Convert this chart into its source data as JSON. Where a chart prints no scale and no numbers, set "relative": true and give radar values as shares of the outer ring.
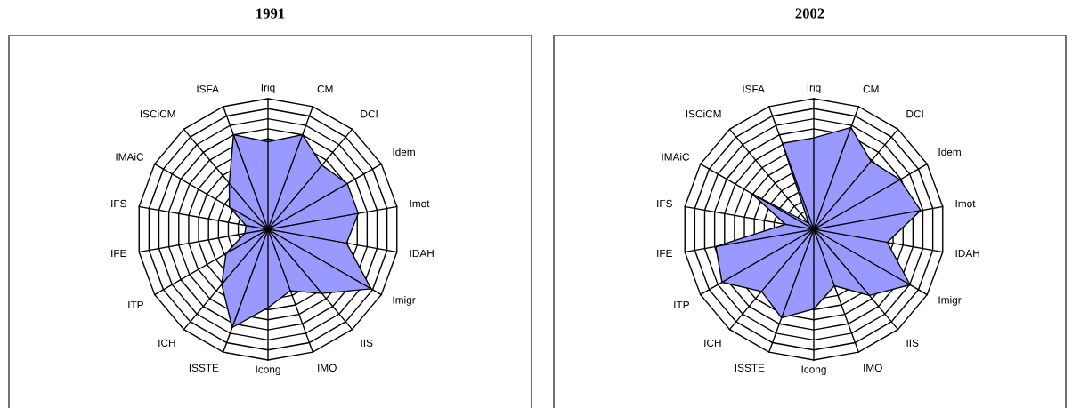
{
  "chart_data": [
    {
      "type": "radar",
      "title": "1991",
      "relative": true,
      "grid": true,
      "categories": [
        "Iriq",
        "CM",
        "DCI",
        "Idem",
        "Imot",
        "IDAH",
        "Imigr",
        "IIS",
        "IMO",
        "Icong",
        "ISSTE",
        "ICH",
        "ITP",
        "IFE",
        "IFS",
        "IMAiC",
        "ISCiCM",
        "ISFA"
      ],
      "series": [
        {
          "color": "#9999ff",
          "values": [
            0.67,
            0.77,
            0.64,
            0.7,
            0.7,
            0.61,
            0.91,
            0.64,
            0.5,
            0.6,
            0.8,
            0.55,
            0.37,
            0.18,
            0.17,
            0.34,
            0.46,
            0.77
          ]
        }
      ]
    },
    {
      "type": "radar",
      "title": "2002",
      "relative": true,
      "grid": true,
      "categories": [
        "Iriq",
        "CM",
        "DCI",
        "Idem",
        "Imot",
        "IDAH",
        "Imigr",
        "IIS",
        "IMO",
        "Icong",
        "ISSTE",
        "ICH",
        "ITP",
        "IFE",
        "IFS",
        "IMAiC",
        "ISCiCM",
        "ISFA"
      ],
      "series": [
        {
          "color": "#9999ff",
          "values": [
            0.7,
            0.83,
            0.68,
            0.76,
            0.83,
            0.57,
            0.85,
            0.66,
            0.46,
            0.61,
            0.72,
            0.62,
            0.81,
            0.76,
            0.22,
            0.55,
            0.06,
            0.7
          ]
        }
      ]
    }
  ]
}
